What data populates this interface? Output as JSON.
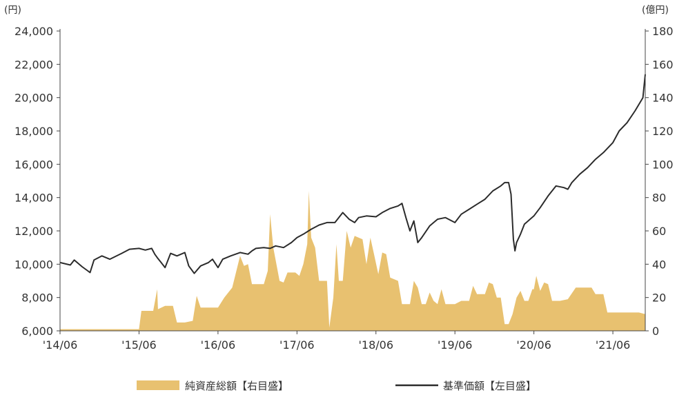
{
  "chart_data": {
    "type": "area+line",
    "units": {
      "left": "(円)",
      "right": "(億円)"
    },
    "left_axis": {
      "ylim": [
        6000,
        24000
      ],
      "ticks": [
        6000,
        8000,
        10000,
        12000,
        14000,
        16000,
        18000,
        20000,
        22000,
        24000
      ],
      "tick_labels": [
        "6,000",
        "8,000",
        "10,000",
        "12,000",
        "14,000",
        "16,000",
        "18,000",
        "20,000",
        "22,000",
        "24,000"
      ]
    },
    "right_axis": {
      "ylim": [
        0,
        180
      ],
      "ticks": [
        0,
        20,
        40,
        60,
        80,
        100,
        120,
        140,
        160,
        180
      ],
      "tick_labels": [
        "0",
        "20",
        "40",
        "60",
        "80",
        "100",
        "120",
        "140",
        "160",
        "180"
      ]
    },
    "x_axis": {
      "range": [
        2014.42,
        2021.83
      ],
      "ticks": [
        2014.42,
        2015.42,
        2016.42,
        2017.42,
        2018.42,
        2019.42,
        2020.42,
        2021.42
      ],
      "tick_labels": [
        "'14/06",
        "'15/06",
        "'16/06",
        "'17/06",
        "'18/06",
        "'19/06",
        "'20/06",
        "'21/06"
      ]
    },
    "legend": [
      {
        "label": "純資産総額【右目盛】",
        "kind": "area",
        "color": "#e8c170"
      },
      {
        "label": "基準価額【左目盛】",
        "kind": "line",
        "color": "#2b2b2b"
      }
    ],
    "legend_position": "bottom-center",
    "series": [
      {
        "name": "基準価額【左目盛】",
        "axis": "left",
        "type": "line",
        "color": "#2b2b2b",
        "points": [
          [
            2014.42,
            10100
          ],
          [
            2014.55,
            9950
          ],
          [
            2014.6,
            10250
          ],
          [
            2014.7,
            9850
          ],
          [
            2014.8,
            9500
          ],
          [
            2014.85,
            10250
          ],
          [
            2014.95,
            10500
          ],
          [
            2015.05,
            10300
          ],
          [
            2015.2,
            10650
          ],
          [
            2015.3,
            10900
          ],
          [
            2015.42,
            10950
          ],
          [
            2015.5,
            10850
          ],
          [
            2015.58,
            10950
          ],
          [
            2015.62,
            10600
          ],
          [
            2015.65,
            10400
          ],
          [
            2015.7,
            10100
          ],
          [
            2015.75,
            9800
          ],
          [
            2015.82,
            10650
          ],
          [
            2015.9,
            10500
          ],
          [
            2016.0,
            10700
          ],
          [
            2016.05,
            9900
          ],
          [
            2016.12,
            9450
          ],
          [
            2016.2,
            9900
          ],
          [
            2016.3,
            10100
          ],
          [
            2016.35,
            10300
          ],
          [
            2016.42,
            9800
          ],
          [
            2016.48,
            10300
          ],
          [
            2016.58,
            10500
          ],
          [
            2016.7,
            10700
          ],
          [
            2016.8,
            10600
          ],
          [
            2016.85,
            10800
          ],
          [
            2016.9,
            10950
          ],
          [
            2017.0,
            11000
          ],
          [
            2017.08,
            10950
          ],
          [
            2017.15,
            11100
          ],
          [
            2017.25,
            11000
          ],
          [
            2017.35,
            11300
          ],
          [
            2017.42,
            11600
          ],
          [
            2017.5,
            11800
          ],
          [
            2017.6,
            12100
          ],
          [
            2017.7,
            12350
          ],
          [
            2017.8,
            12500
          ],
          [
            2017.9,
            12500
          ],
          [
            2018.0,
            13100
          ],
          [
            2018.08,
            12700
          ],
          [
            2018.15,
            12500
          ],
          [
            2018.2,
            12800
          ],
          [
            2018.3,
            12900
          ],
          [
            2018.42,
            12850
          ],
          [
            2018.5,
            13100
          ],
          [
            2018.6,
            13350
          ],
          [
            2018.7,
            13500
          ],
          [
            2018.75,
            13650
          ],
          [
            2018.8,
            12800
          ],
          [
            2018.85,
            12000
          ],
          [
            2018.9,
            12600
          ],
          [
            2018.95,
            11300
          ],
          [
            2019.0,
            11600
          ],
          [
            2019.1,
            12300
          ],
          [
            2019.2,
            12700
          ],
          [
            2019.3,
            12800
          ],
          [
            2019.42,
            12500
          ],
          [
            2019.5,
            13000
          ],
          [
            2019.6,
            13300
          ],
          [
            2019.7,
            13600
          ],
          [
            2019.8,
            13900
          ],
          [
            2019.9,
            14400
          ],
          [
            2020.0,
            14700
          ],
          [
            2020.05,
            14900
          ],
          [
            2020.1,
            14900
          ],
          [
            2020.13,
            14200
          ],
          [
            2020.16,
            11500
          ],
          [
            2020.18,
            10800
          ],
          [
            2020.2,
            11300
          ],
          [
            2020.25,
            11800
          ],
          [
            2020.3,
            12400
          ],
          [
            2020.42,
            12900
          ],
          [
            2020.5,
            13400
          ],
          [
            2020.6,
            14100
          ],
          [
            2020.7,
            14700
          ],
          [
            2020.8,
            14600
          ],
          [
            2020.85,
            14500
          ],
          [
            2020.9,
            14900
          ],
          [
            2021.0,
            15400
          ],
          [
            2021.1,
            15800
          ],
          [
            2021.2,
            16300
          ],
          [
            2021.3,
            16700
          ],
          [
            2021.42,
            17300
          ],
          [
            2021.5,
            18000
          ],
          [
            2021.6,
            18500
          ],
          [
            2021.7,
            19200
          ],
          [
            2021.8,
            20000
          ],
          [
            2021.83,
            21400
          ]
        ]
      },
      {
        "name": "純資産総額【右目盛】",
        "axis": "right",
        "type": "area",
        "color": "#e8c170",
        "points": [
          [
            2014.42,
            1
          ],
          [
            2015.42,
            1
          ],
          [
            2015.45,
            12
          ],
          [
            2015.6,
            12
          ],
          [
            2015.65,
            25
          ],
          [
            2015.66,
            13
          ],
          [
            2015.75,
            15
          ],
          [
            2015.85,
            15
          ],
          [
            2015.9,
            5
          ],
          [
            2016.0,
            5
          ],
          [
            2016.1,
            6
          ],
          [
            2016.15,
            21
          ],
          [
            2016.2,
            14
          ],
          [
            2016.3,
            14
          ],
          [
            2016.42,
            14
          ],
          [
            2016.5,
            20
          ],
          [
            2016.6,
            26
          ],
          [
            2016.7,
            45
          ],
          [
            2016.75,
            39
          ],
          [
            2016.8,
            40
          ],
          [
            2016.85,
            28
          ],
          [
            2016.95,
            28
          ],
          [
            2017.0,
            28
          ],
          [
            2017.05,
            36
          ],
          [
            2017.08,
            70
          ],
          [
            2017.12,
            50
          ],
          [
            2017.2,
            30
          ],
          [
            2017.25,
            29
          ],
          [
            2017.3,
            35
          ],
          [
            2017.4,
            35
          ],
          [
            2017.45,
            33
          ],
          [
            2017.5,
            40
          ],
          [
            2017.55,
            52
          ],
          [
            2017.57,
            84
          ],
          [
            2017.6,
            56
          ],
          [
            2017.65,
            50
          ],
          [
            2017.7,
            30
          ],
          [
            2017.8,
            30
          ],
          [
            2017.83,
            2
          ],
          [
            2017.88,
            20
          ],
          [
            2017.92,
            52
          ],
          [
            2017.95,
            30
          ],
          [
            2018.0,
            30
          ],
          [
            2018.05,
            60
          ],
          [
            2018.1,
            50
          ],
          [
            2018.15,
            57
          ],
          [
            2018.2,
            56
          ],
          [
            2018.25,
            55
          ],
          [
            2018.3,
            40
          ],
          [
            2018.35,
            56
          ],
          [
            2018.4,
            45
          ],
          [
            2018.45,
            34
          ],
          [
            2018.5,
            47
          ],
          [
            2018.55,
            46
          ],
          [
            2018.6,
            32
          ],
          [
            2018.7,
            30
          ],
          [
            2018.75,
            16
          ],
          [
            2018.85,
            16
          ],
          [
            2018.9,
            30
          ],
          [
            2018.95,
            26
          ],
          [
            2019.0,
            16
          ],
          [
            2019.05,
            16
          ],
          [
            2019.1,
            23
          ],
          [
            2019.15,
            18
          ],
          [
            2019.2,
            16
          ],
          [
            2019.25,
            25
          ],
          [
            2019.3,
            16
          ],
          [
            2019.42,
            16
          ],
          [
            2019.5,
            18
          ],
          [
            2019.6,
            18
          ],
          [
            2019.65,
            27
          ],
          [
            2019.7,
            22
          ],
          [
            2019.8,
            22
          ],
          [
            2019.85,
            29
          ],
          [
            2019.9,
            28
          ],
          [
            2019.95,
            20
          ],
          [
            2020.0,
            20
          ],
          [
            2020.05,
            4
          ],
          [
            2020.1,
            4
          ],
          [
            2020.15,
            10
          ],
          [
            2020.2,
            20
          ],
          [
            2020.25,
            24
          ],
          [
            2020.3,
            18
          ],
          [
            2020.35,
            18
          ],
          [
            2020.4,
            25
          ],
          [
            2020.42,
            25
          ],
          [
            2020.45,
            33
          ],
          [
            2020.5,
            24
          ],
          [
            2020.55,
            29
          ],
          [
            2020.6,
            28
          ],
          [
            2020.65,
            18
          ],
          [
            2020.75,
            18
          ],
          [
            2020.85,
            19
          ],
          [
            2020.95,
            26
          ],
          [
            2021.05,
            26
          ],
          [
            2021.15,
            26
          ],
          [
            2021.2,
            22
          ],
          [
            2021.3,
            22
          ],
          [
            2021.35,
            11
          ],
          [
            2021.45,
            11
          ],
          [
            2021.55,
            11
          ],
          [
            2021.65,
            11
          ],
          [
            2021.75,
            11
          ],
          [
            2021.83,
            10
          ]
        ]
      }
    ]
  }
}
